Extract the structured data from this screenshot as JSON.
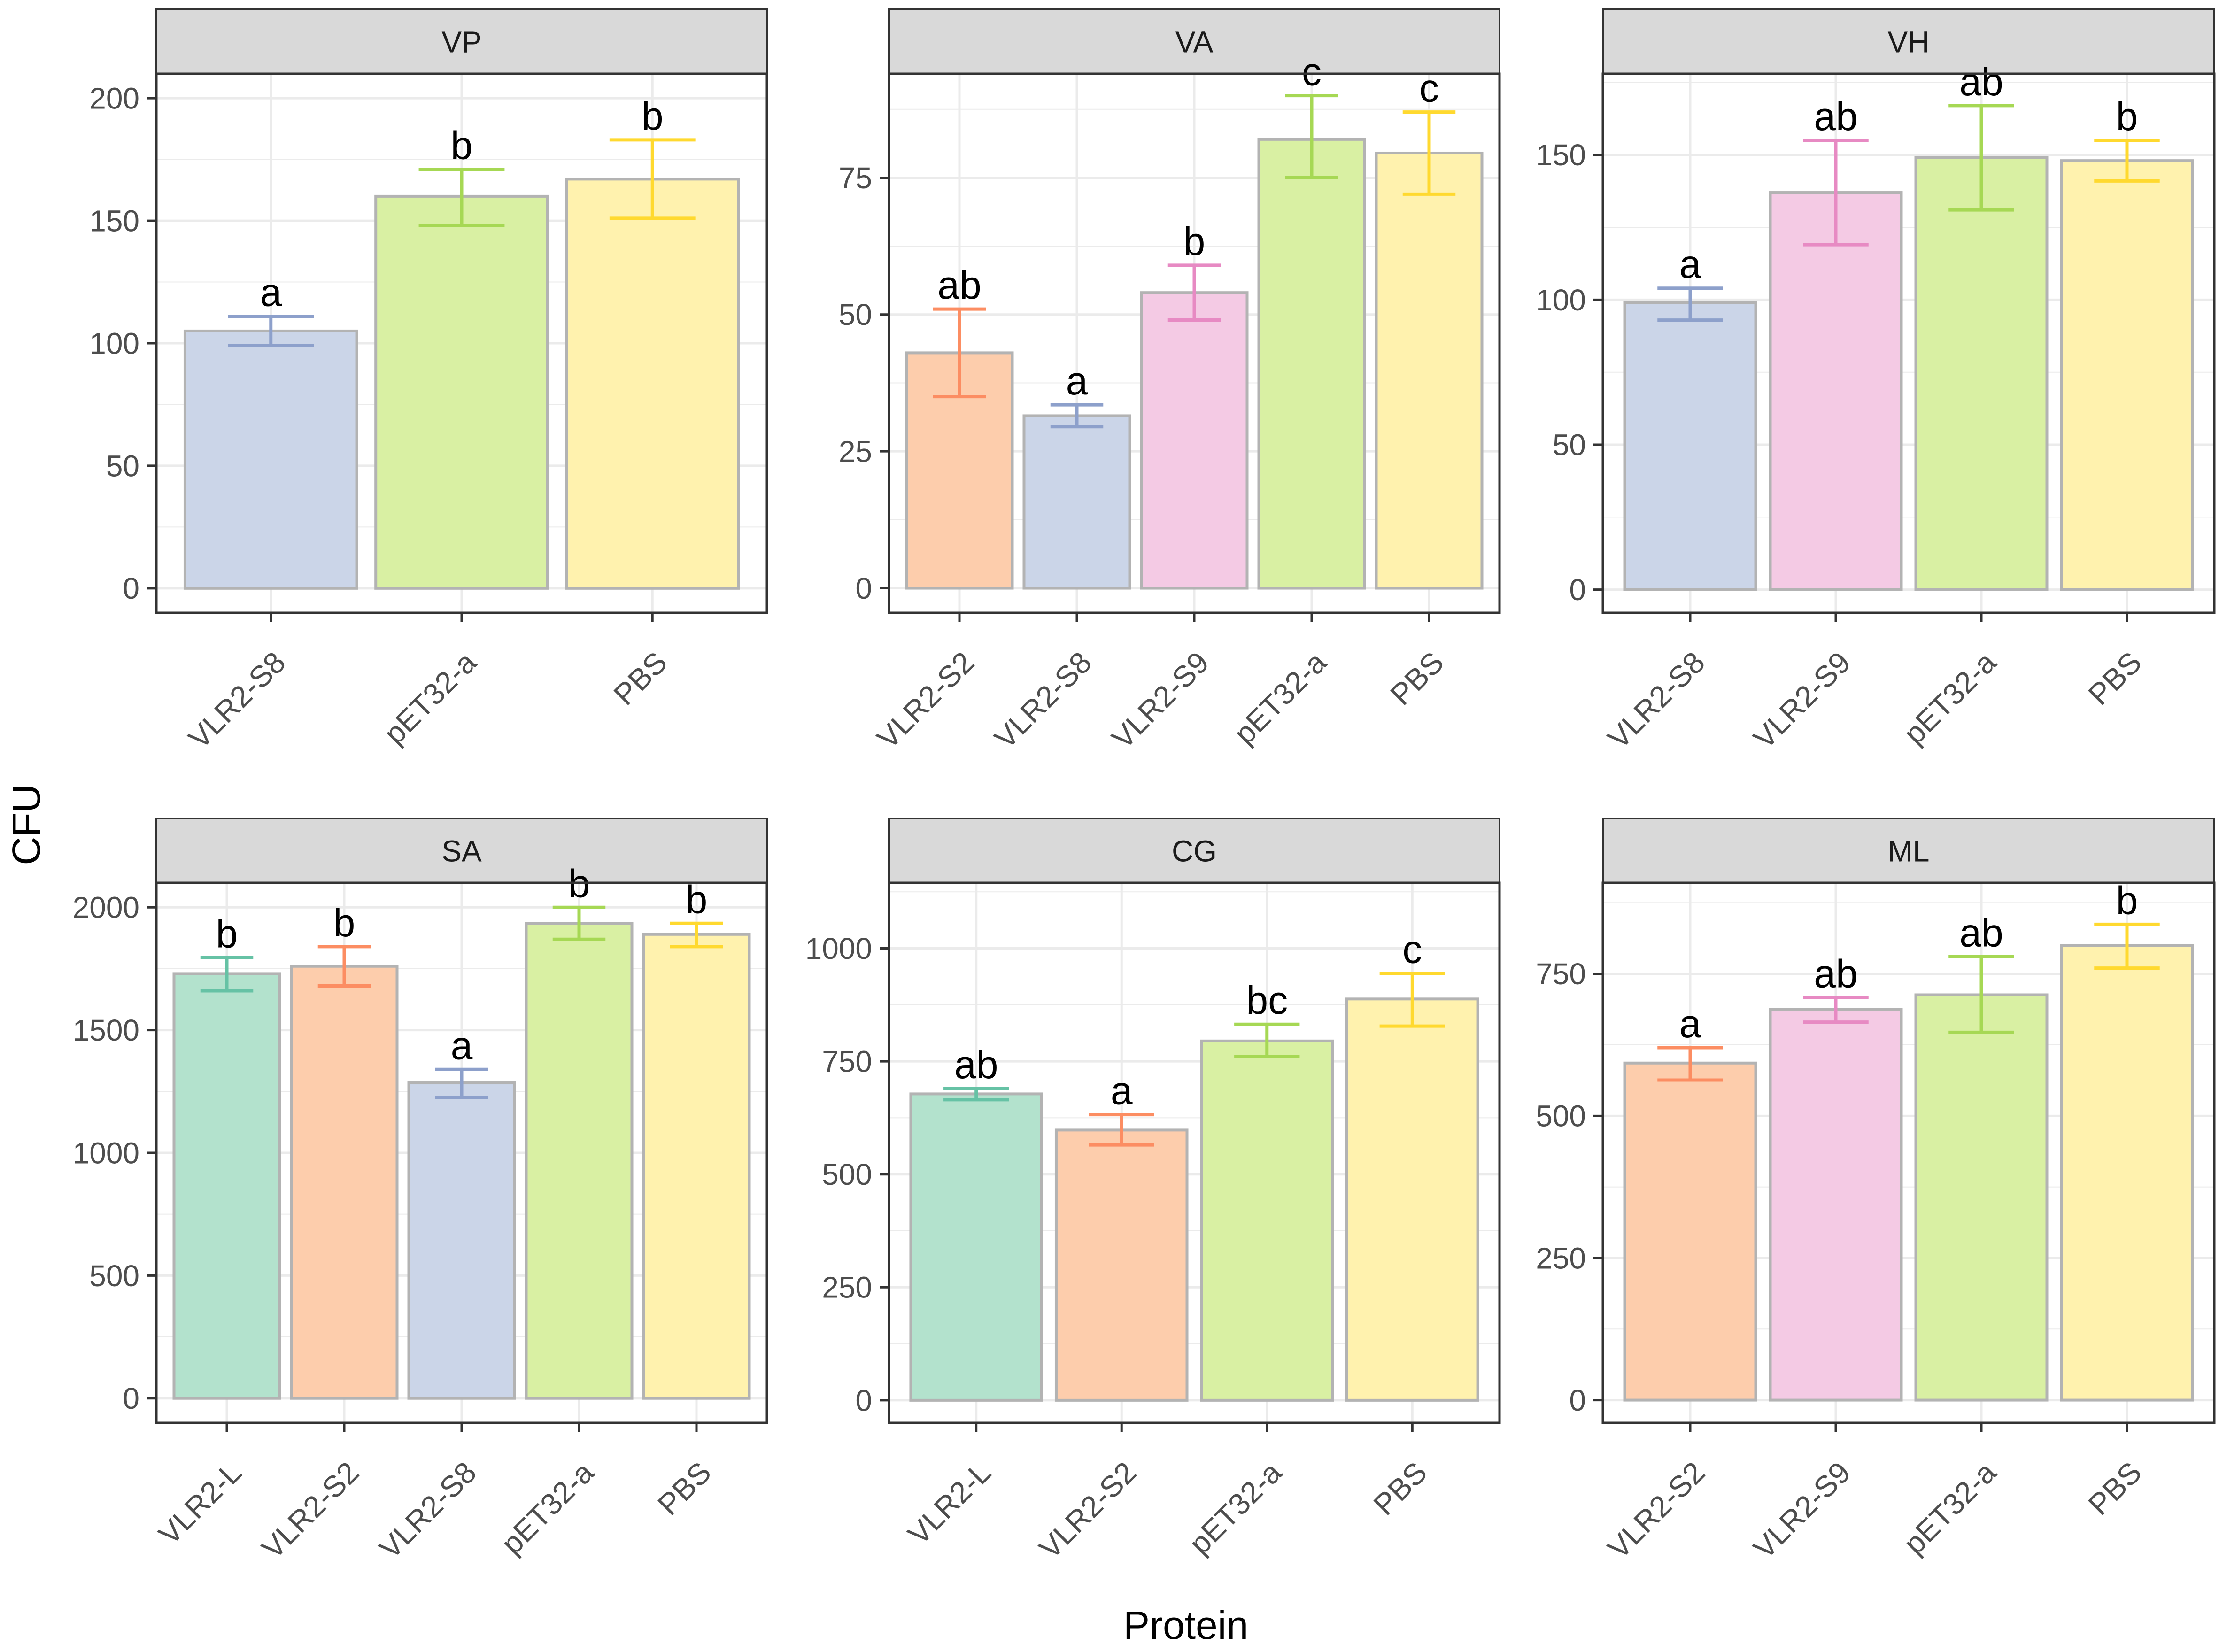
{
  "axes": {
    "xlabel": "Protein",
    "ylabel": "CFU"
  },
  "colors": {
    "VLR2-L": {
      "fill": "#b3e2cd",
      "line": "#66c2a5"
    },
    "VLR2-S2": {
      "fill": "#fdcdac",
      "line": "#fc8d62"
    },
    "VLR2-S8": {
      "fill": "#cbd5e8",
      "line": "#8da0cb"
    },
    "VLR2-S9": {
      "fill": "#f4cae4",
      "line": "#e78ac3"
    },
    "pET32-a": {
      "fill": "#d9f0a3",
      "line": "#a6d854"
    },
    "PBS": {
      "fill": "#fff2ae",
      "line": "#ffd92f"
    },
    "bar_outline": "#b3b3b3",
    "strip_fill": "#d9d9d9",
    "grid": "#ebebeb"
  },
  "chart_data": [
    {
      "type": "bar",
      "title": "VP",
      "ylim": [
        -10,
        210
      ],
      "yticks": [
        0,
        50,
        100,
        150,
        200
      ],
      "categories": [
        "VLR2-S8",
        "pET32-a",
        "PBS"
      ],
      "values": [
        105,
        160,
        167
      ],
      "err_low": [
        99,
        148,
        151
      ],
      "err_high": [
        111,
        171,
        183
      ],
      "letters": [
        "a",
        "b",
        "b"
      ]
    },
    {
      "type": "bar",
      "title": "VA",
      "ylim": [
        -4.5,
        94
      ],
      "yticks": [
        0,
        25,
        50,
        75
      ],
      "categories": [
        "VLR2-S2",
        "VLR2-S8",
        "VLR2-S9",
        "pET32-a",
        "PBS"
      ],
      "values": [
        43,
        31.5,
        54,
        82,
        79.5
      ],
      "err_low": [
        35,
        29.5,
        49,
        75,
        72
      ],
      "err_high": [
        51,
        33.5,
        59,
        90,
        87
      ],
      "letters": [
        "ab",
        "a",
        "b",
        "c",
        "c"
      ]
    },
    {
      "type": "bar",
      "title": "VH",
      "ylim": [
        -8,
        178
      ],
      "yticks": [
        0,
        50,
        100,
        150
      ],
      "categories": [
        "VLR2-S8",
        "VLR2-S9",
        "pET32-a",
        "PBS"
      ],
      "values": [
        99,
        137,
        149,
        148
      ],
      "err_low": [
        93,
        119,
        131,
        141
      ],
      "err_high": [
        104,
        155,
        167,
        155
      ],
      "letters": [
        "a",
        "ab",
        "ab",
        "b"
      ]
    },
    {
      "type": "bar",
      "title": "SA",
      "ylim": [
        -100,
        2100
      ],
      "yticks": [
        0,
        500,
        1000,
        1500,
        2000
      ],
      "categories": [
        "VLR2-L",
        "VLR2-S2",
        "VLR2-S8",
        "pET32-a",
        "PBS"
      ],
      "values": [
        1730,
        1760,
        1285,
        1935,
        1890
      ],
      "err_low": [
        1660,
        1680,
        1225,
        1870,
        1840
      ],
      "err_high": [
        1795,
        1840,
        1340,
        2000,
        1935
      ],
      "letters": [
        "b",
        "b",
        "a",
        "b",
        "b"
      ]
    },
    {
      "type": "bar",
      "title": "CG",
      "ylim": [
        -50,
        1145
      ],
      "yticks": [
        0,
        250,
        500,
        750,
        1000
      ],
      "categories": [
        "VLR2-L",
        "VLR2-S2",
        "pET32-a",
        "PBS"
      ],
      "values": [
        678,
        598,
        795,
        888
      ],
      "err_low": [
        665,
        565,
        760,
        828
      ],
      "err_high": [
        690,
        632,
        832,
        945
      ],
      "letters": [
        "ab",
        "a",
        "bc",
        "c"
      ]
    },
    {
      "type": "bar",
      "title": "ML",
      "ylim": [
        -40,
        910
      ],
      "yticks": [
        0,
        250,
        500,
        750
      ],
      "categories": [
        "VLR2-S2",
        "VLR2-S9",
        "pET32-a",
        "PBS"
      ],
      "values": [
        593,
        687,
        713,
        800
      ],
      "err_low": [
        563,
        665,
        647,
        760
      ],
      "err_high": [
        620,
        708,
        780,
        837
      ],
      "letters": [
        "a",
        "ab",
        "ab",
        "b"
      ]
    }
  ]
}
